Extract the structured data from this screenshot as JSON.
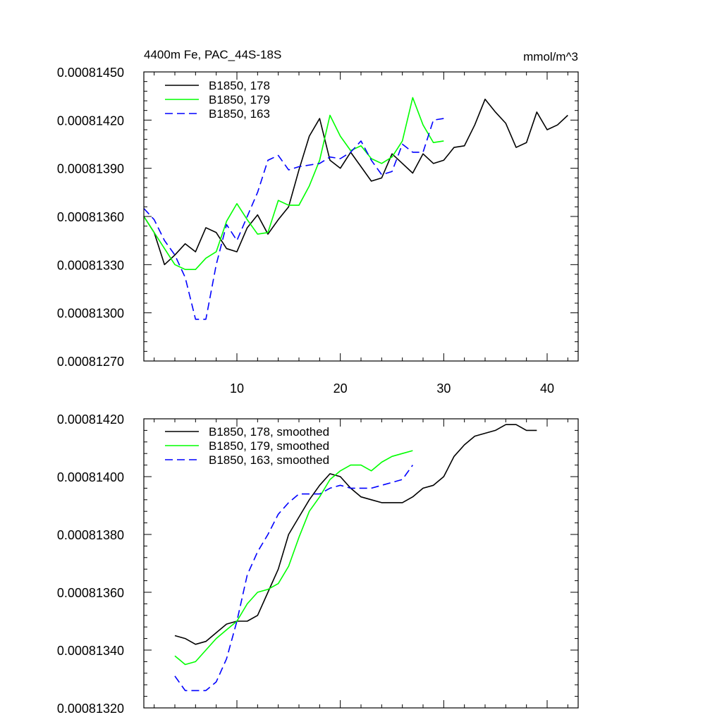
{
  "chart_data": [
    {
      "type": "line",
      "title_left": "4400m Fe, PAC_44S-18S",
      "title_right": "mmol/m^3",
      "xlim": [
        1,
        43
      ],
      "ylim": [
        0.0008127,
        0.0008145
      ],
      "x_ticks": [
        10,
        20,
        30,
        40
      ],
      "x_tick_labels": [
        "10",
        "20",
        "30",
        "40"
      ],
      "y_ticks": [
        0.0008127,
        0.000813,
        0.0008133,
        0.0008136,
        0.0008139,
        0.0008142,
        0.0008145
      ],
      "y_tick_labels": [
        "0.00081270",
        "0.00081300",
        "0.00081330",
        "0.00081360",
        "0.00081390",
        "0.00081420",
        "0.00081450"
      ],
      "legend": "top-left",
      "series": [
        {
          "name": "B1850, 178",
          "color": "#000000",
          "dash": "solid",
          "x": [
            1,
            2,
            3,
            4,
            5,
            6,
            7,
            8,
            9,
            10,
            11,
            12,
            13,
            14,
            15,
            16,
            17,
            18,
            19,
            20,
            21,
            22,
            23,
            24,
            25,
            26,
            27,
            28,
            29,
            30,
            31,
            32,
            33,
            34,
            35,
            36,
            37,
            38,
            39,
            40,
            41,
            42
          ],
          "y": [
            0.0008136,
            0.0008135,
            0.0008133,
            0.00081336,
            0.00081343,
            0.00081338,
            0.00081353,
            0.0008135,
            0.0008134,
            0.00081338,
            0.00081353,
            0.00081361,
            0.00081349,
            0.00081358,
            0.00081366,
            0.00081389,
            0.0008141,
            0.00081421,
            0.00081395,
            0.0008139,
            0.000814,
            0.00081391,
            0.00081382,
            0.00081384,
            0.00081399,
            0.00081393,
            0.00081387,
            0.00081399,
            0.00081393,
            0.00081395,
            0.00081403,
            0.00081404,
            0.00081417,
            0.00081433,
            0.00081425,
            0.00081418,
            0.00081403,
            0.00081406,
            0.00081425,
            0.00081414,
            0.00081417,
            0.00081423
          ]
        },
        {
          "name": "B1850, 179",
          "color": "#00ff00",
          "dash": "solid",
          "x": [
            1,
            2,
            3,
            4,
            5,
            6,
            7,
            8,
            9,
            10,
            11,
            12,
            13,
            14,
            15,
            16,
            17,
            18,
            19,
            20,
            21,
            22,
            23,
            24,
            25,
            26,
            27,
            28,
            29,
            30
          ],
          "y": [
            0.0008136,
            0.0008135,
            0.0008134,
            0.0008133,
            0.00081327,
            0.00081327,
            0.00081334,
            0.00081338,
            0.00081357,
            0.00081368,
            0.00081358,
            0.00081349,
            0.0008135,
            0.0008137,
            0.00081367,
            0.00081367,
            0.00081379,
            0.00081395,
            0.00081423,
            0.0008141,
            0.00081401,
            0.00081404,
            0.00081396,
            0.00081393,
            0.00081397,
            0.00081407,
            0.00081434,
            0.00081417,
            0.00081406,
            0.00081407
          ]
        },
        {
          "name": "B1850, 163",
          "color": "#0000ff",
          "dash": "dashed",
          "x": [
            1,
            2,
            3,
            4,
            5,
            6,
            7,
            8,
            9,
            10,
            11,
            12,
            13,
            14,
            15,
            16,
            17,
            18,
            19,
            20,
            21,
            22,
            23,
            24,
            25,
            26,
            27,
            28,
            29,
            30
          ],
          "y": [
            0.00081365,
            0.00081358,
            0.00081345,
            0.00081336,
            0.00081322,
            0.00081296,
            0.00081296,
            0.0008133,
            0.00081355,
            0.00081345,
            0.0008136,
            0.00081375,
            0.00081395,
            0.00081398,
            0.00081389,
            0.00081391,
            0.00081392,
            0.00081393,
            0.00081397,
            0.00081396,
            0.000814,
            0.00081407,
            0.00081395,
            0.00081386,
            0.00081388,
            0.00081405,
            0.000814,
            0.000814,
            0.0008142,
            0.00081421
          ]
        }
      ]
    },
    {
      "type": "line",
      "xlim": [
        1,
        43
      ],
      "ylim": [
        0.0008132,
        0.0008142
      ],
      "x_ticks": [
        10,
        20,
        30,
        40
      ],
      "y_ticks": [
        0.0008132,
        0.0008134,
        0.0008136,
        0.0008138,
        0.000814,
        0.0008142
      ],
      "y_tick_labels": [
        "0.00081320",
        "0.00081340",
        "0.00081360",
        "0.00081380",
        "0.00081400",
        "0.00081420"
      ],
      "legend": "top-left",
      "series": [
        {
          "name": "B1850, 178, smoothed",
          "color": "#000000",
          "dash": "solid",
          "x": [
            4,
            5,
            6,
            7,
            8,
            9,
            10,
            11,
            12,
            13,
            14,
            15,
            16,
            17,
            18,
            19,
            20,
            21,
            22,
            23,
            24,
            25,
            26,
            27,
            28,
            29,
            30,
            31,
            32,
            33,
            34,
            35,
            36,
            37,
            38,
            39
          ],
          "y": [
            0.00081345,
            0.00081344,
            0.00081342,
            0.00081343,
            0.00081346,
            0.00081349,
            0.0008135,
            0.0008135,
            0.00081352,
            0.0008136,
            0.00081368,
            0.0008138,
            0.00081386,
            0.00081392,
            0.00081397,
            0.00081401,
            0.000814,
            0.00081396,
            0.00081393,
            0.00081392,
            0.00081391,
            0.00081391,
            0.00081391,
            0.00081393,
            0.00081396,
            0.00081397,
            0.000814,
            0.00081407,
            0.00081411,
            0.00081414,
            0.00081415,
            0.00081416,
            0.00081418,
            0.00081418,
            0.00081416,
            0.00081416
          ]
        },
        {
          "name": "B1850, 179, smoothed",
          "color": "#00ff00",
          "dash": "solid",
          "x": [
            4,
            5,
            6,
            7,
            8,
            9,
            10,
            11,
            12,
            13,
            14,
            15,
            16,
            17,
            18,
            19,
            20,
            21,
            22,
            23,
            24,
            25,
            26,
            27
          ],
          "y": [
            0.00081338,
            0.00081335,
            0.00081336,
            0.0008134,
            0.00081344,
            0.00081347,
            0.0008135,
            0.00081356,
            0.0008136,
            0.00081361,
            0.00081363,
            0.00081369,
            0.00081379,
            0.00081388,
            0.00081393,
            0.00081399,
            0.00081402,
            0.00081404,
            0.00081404,
            0.00081402,
            0.00081405,
            0.00081407,
            0.00081408,
            0.00081409
          ]
        },
        {
          "name": "B1850, 163, smoothed",
          "color": "#0000ff",
          "dash": "dashed",
          "x": [
            4,
            5,
            6,
            7,
            8,
            9,
            10,
            11,
            12,
            13,
            14,
            15,
            16,
            17,
            18,
            19,
            20,
            21,
            22,
            23,
            24,
            25,
            26,
            27
          ],
          "y": [
            0.00081331,
            0.00081326,
            0.00081326,
            0.00081326,
            0.00081329,
            0.00081337,
            0.0008135,
            0.00081366,
            0.00081374,
            0.0008138,
            0.00081387,
            0.00081391,
            0.00081394,
            0.00081394,
            0.00081394,
            0.00081396,
            0.00081397,
            0.00081396,
            0.00081396,
            0.00081396,
            0.00081397,
            0.00081398,
            0.00081399,
            0.00081404
          ]
        }
      ]
    }
  ]
}
